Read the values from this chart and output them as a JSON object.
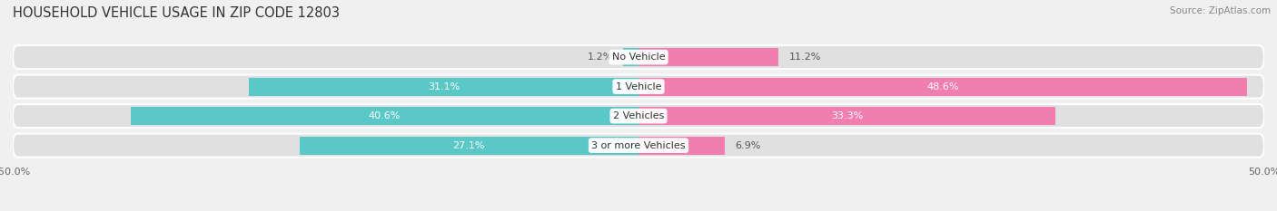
{
  "title": "HOUSEHOLD VEHICLE USAGE IN ZIP CODE 12803",
  "source": "Source: ZipAtlas.com",
  "categories": [
    "No Vehicle",
    "1 Vehicle",
    "2 Vehicles",
    "3 or more Vehicles"
  ],
  "owner_values": [
    1.2,
    31.1,
    40.6,
    27.1
  ],
  "renter_values": [
    11.2,
    48.6,
    33.3,
    6.9
  ],
  "owner_color": "#5BC8C8",
  "renter_color": "#F07EB0",
  "xlim": 50.0,
  "background_color": "#f0f0f0",
  "row_background_color": "#e0e0e0",
  "title_fontsize": 10.5,
  "source_fontsize": 7.5,
  "label_fontsize": 8,
  "category_fontsize": 8,
  "legend_fontsize": 8,
  "bar_height": 0.62
}
